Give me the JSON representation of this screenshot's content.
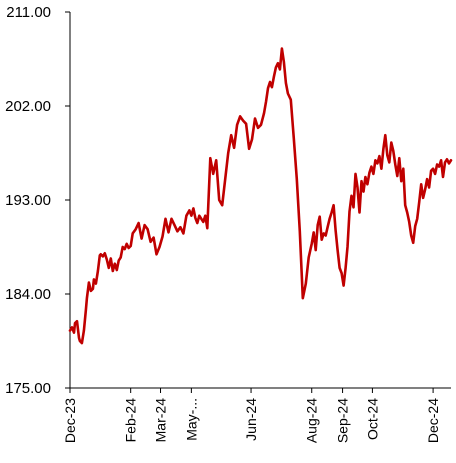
{
  "chart_data": {
    "type": "line",
    "title": "",
    "xlabel": "",
    "ylabel": "",
    "ylim": [
      175,
      211
    ],
    "yticks": [
      "175.00",
      "184.00",
      "193.00",
      "202.00",
      "211.00"
    ],
    "ytick_values": [
      175,
      184,
      193,
      202,
      211
    ],
    "xlim": [
      "2023-12-01",
      "2024-12-18"
    ],
    "xticks": [
      "Dec-23",
      "Feb-24",
      "Mar-24",
      "May-...",
      "Jun-24",
      "Aug-24",
      "Sep-24",
      "Oct-24",
      "Dec-24"
    ],
    "xtick_dates": [
      "2023-12-01",
      "2024-01-31",
      "2024-03-01",
      "2024-04-01",
      "2024-05-31",
      "2024-07-31",
      "2024-08-31",
      "2024-09-30",
      "2024-11-30"
    ],
    "grid": false,
    "series": [
      {
        "color": "#C00000",
        "x": [
          "2023-12-01",
          "2023-12-03",
          "2023-12-05",
          "2023-12-06",
          "2023-12-08",
          "2023-12-10",
          "2023-12-11",
          "2023-12-13",
          "2023-12-15",
          "2023-12-17",
          "2023-12-18",
          "2023-12-20",
          "2023-12-22",
          "2023-12-24",
          "2023-12-25",
          "2023-12-27",
          "2023-12-29",
          "2023-12-31",
          "2024-01-01",
          "2024-01-03",
          "2024-01-05",
          "2024-01-07",
          "2024-01-09",
          "2024-01-11",
          "2024-01-13",
          "2024-01-15",
          "2024-01-17",
          "2024-01-19",
          "2024-01-21",
          "2024-01-23",
          "2024-01-25",
          "2024-01-27",
          "2024-01-29",
          "2024-01-31",
          "2024-02-02",
          "2024-02-05",
          "2024-02-08",
          "2024-02-11",
          "2024-02-14",
          "2024-02-17",
          "2024-02-20",
          "2024-02-23",
          "2024-02-26",
          "2024-02-29",
          "2024-03-03",
          "2024-03-06",
          "2024-03-09",
          "2024-03-12",
          "2024-03-15",
          "2024-03-18",
          "2024-03-21",
          "2024-03-24",
          "2024-03-27",
          "2024-03-30",
          "2024-04-01",
          "2024-04-03",
          "2024-04-05",
          "2024-04-07",
          "2024-04-09",
          "2024-04-11",
          "2024-04-13",
          "2024-04-15",
          "2024-04-17",
          "2024-04-20",
          "2024-04-23",
          "2024-04-26",
          "2024-04-29",
          "2024-05-02",
          "2024-05-05",
          "2024-05-08",
          "2024-05-11",
          "2024-05-14",
          "2024-05-17",
          "2024-05-20",
          "2024-05-23",
          "2024-05-26",
          "2024-05-29",
          "2024-06-01",
          "2024-06-04",
          "2024-06-07",
          "2024-06-10",
          "2024-06-13",
          "2024-06-15",
          "2024-06-17",
          "2024-06-19",
          "2024-06-21",
          "2024-06-23",
          "2024-06-25",
          "2024-06-27",
          "2024-06-29",
          "2024-07-01",
          "2024-07-03",
          "2024-07-05",
          "2024-07-07",
          "2024-07-10",
          "2024-07-13",
          "2024-07-16",
          "2024-07-19",
          "2024-07-22",
          "2024-07-25",
          "2024-07-28",
          "2024-07-31",
          "2024-08-02",
          "2024-08-04",
          "2024-08-06",
          "2024-08-08",
          "2024-08-10",
          "2024-08-12",
          "2024-08-14",
          "2024-08-16",
          "2024-08-18",
          "2024-08-20",
          "2024-08-22",
          "2024-08-24",
          "2024-08-26",
          "2024-08-28",
          "2024-08-30",
          "2024-09-01",
          "2024-09-03",
          "2024-09-05",
          "2024-09-07",
          "2024-09-09",
          "2024-09-11",
          "2024-09-13",
          "2024-09-15",
          "2024-09-17",
          "2024-09-19",
          "2024-09-21",
          "2024-09-23",
          "2024-09-25",
          "2024-09-27",
          "2024-09-29",
          "2024-10-01",
          "2024-10-03",
          "2024-10-05",
          "2024-10-07",
          "2024-10-09",
          "2024-10-11",
          "2024-10-13",
          "2024-10-15",
          "2024-10-17",
          "2024-10-19",
          "2024-10-21",
          "2024-10-23",
          "2024-10-25",
          "2024-10-27",
          "2024-10-29",
          "2024-10-31",
          "2024-11-02",
          "2024-11-04",
          "2024-11-06",
          "2024-11-08",
          "2024-11-10",
          "2024-11-12",
          "2024-11-14",
          "2024-11-16",
          "2024-11-18",
          "2024-11-20",
          "2024-11-22",
          "2024-11-24",
          "2024-11-26",
          "2024-11-28",
          "2024-11-30",
          "2024-12-02",
          "2024-12-04",
          "2024-12-06",
          "2024-12-08",
          "2024-12-10",
          "2024-12-12",
          "2024-12-14",
          "2024-12-16",
          "2024-12-18"
        ],
        "y": [
          180.5,
          180.8,
          180.3,
          181.2,
          181.4,
          179.8,
          179.5,
          179.3,
          180.5,
          182.5,
          183.6,
          185.1,
          184.3,
          184.5,
          185.4,
          185.0,
          186.2,
          187.7,
          187.8,
          187.6,
          187.9,
          187.3,
          186.5,
          187.4,
          186.2,
          186.9,
          186.3,
          187.2,
          187.5,
          188.5,
          188.3,
          188.8,
          188.4,
          188.6,
          189.8,
          190.2,
          190.8,
          189.3,
          190.6,
          190.2,
          189.0,
          189.4,
          187.8,
          188.5,
          189.5,
          191.2,
          189.9,
          191.2,
          190.6,
          190.0,
          190.4,
          189.8,
          191.5,
          192.0,
          191.5,
          192.2,
          191.3,
          190.8,
          191.5,
          191.2,
          190.9,
          191.5,
          190.3,
          197.0,
          195.5,
          196.8,
          193.0,
          192.5,
          195.0,
          197.5,
          199.2,
          198.0,
          200.2,
          201.0,
          200.6,
          200.3,
          197.9,
          198.8,
          200.8,
          199.9,
          200.2,
          201.3,
          202.4,
          203.7,
          204.3,
          203.8,
          204.8,
          205.7,
          206.1,
          205.5,
          207.5,
          206.2,
          204.2,
          203.2,
          202.6,
          198.9,
          195.0,
          190.0,
          183.6,
          185.0,
          187.5,
          188.8,
          189.9,
          188.2,
          190.6,
          191.4,
          189.2,
          189.8,
          189.6,
          190.4,
          191.2,
          191.8,
          192.5,
          190.1,
          188.2,
          186.5,
          186.0,
          184.8,
          186.5,
          188.5,
          191.9,
          193.4,
          192.3,
          195.5,
          194.2,
          191.8,
          194.8,
          193.8,
          195.2,
          194.5,
          195.6,
          196.2,
          195.5,
          196.8,
          196.5,
          197.2,
          196.0,
          197.9,
          199.2,
          197.3,
          196.6,
          198.5,
          197.7,
          196.4,
          195.3,
          197.0,
          194.8,
          196.0,
          192.5,
          191.8,
          190.9,
          189.6,
          188.9,
          190.5,
          191.2,
          192.8,
          194.5,
          193.2,
          194.0,
          195.0,
          194.2,
          195.8,
          196.0,
          195.5,
          196.4,
          196.2,
          196.8,
          195.2,
          196.6,
          196.9,
          196.5,
          196.8
        ]
      }
    ]
  }
}
